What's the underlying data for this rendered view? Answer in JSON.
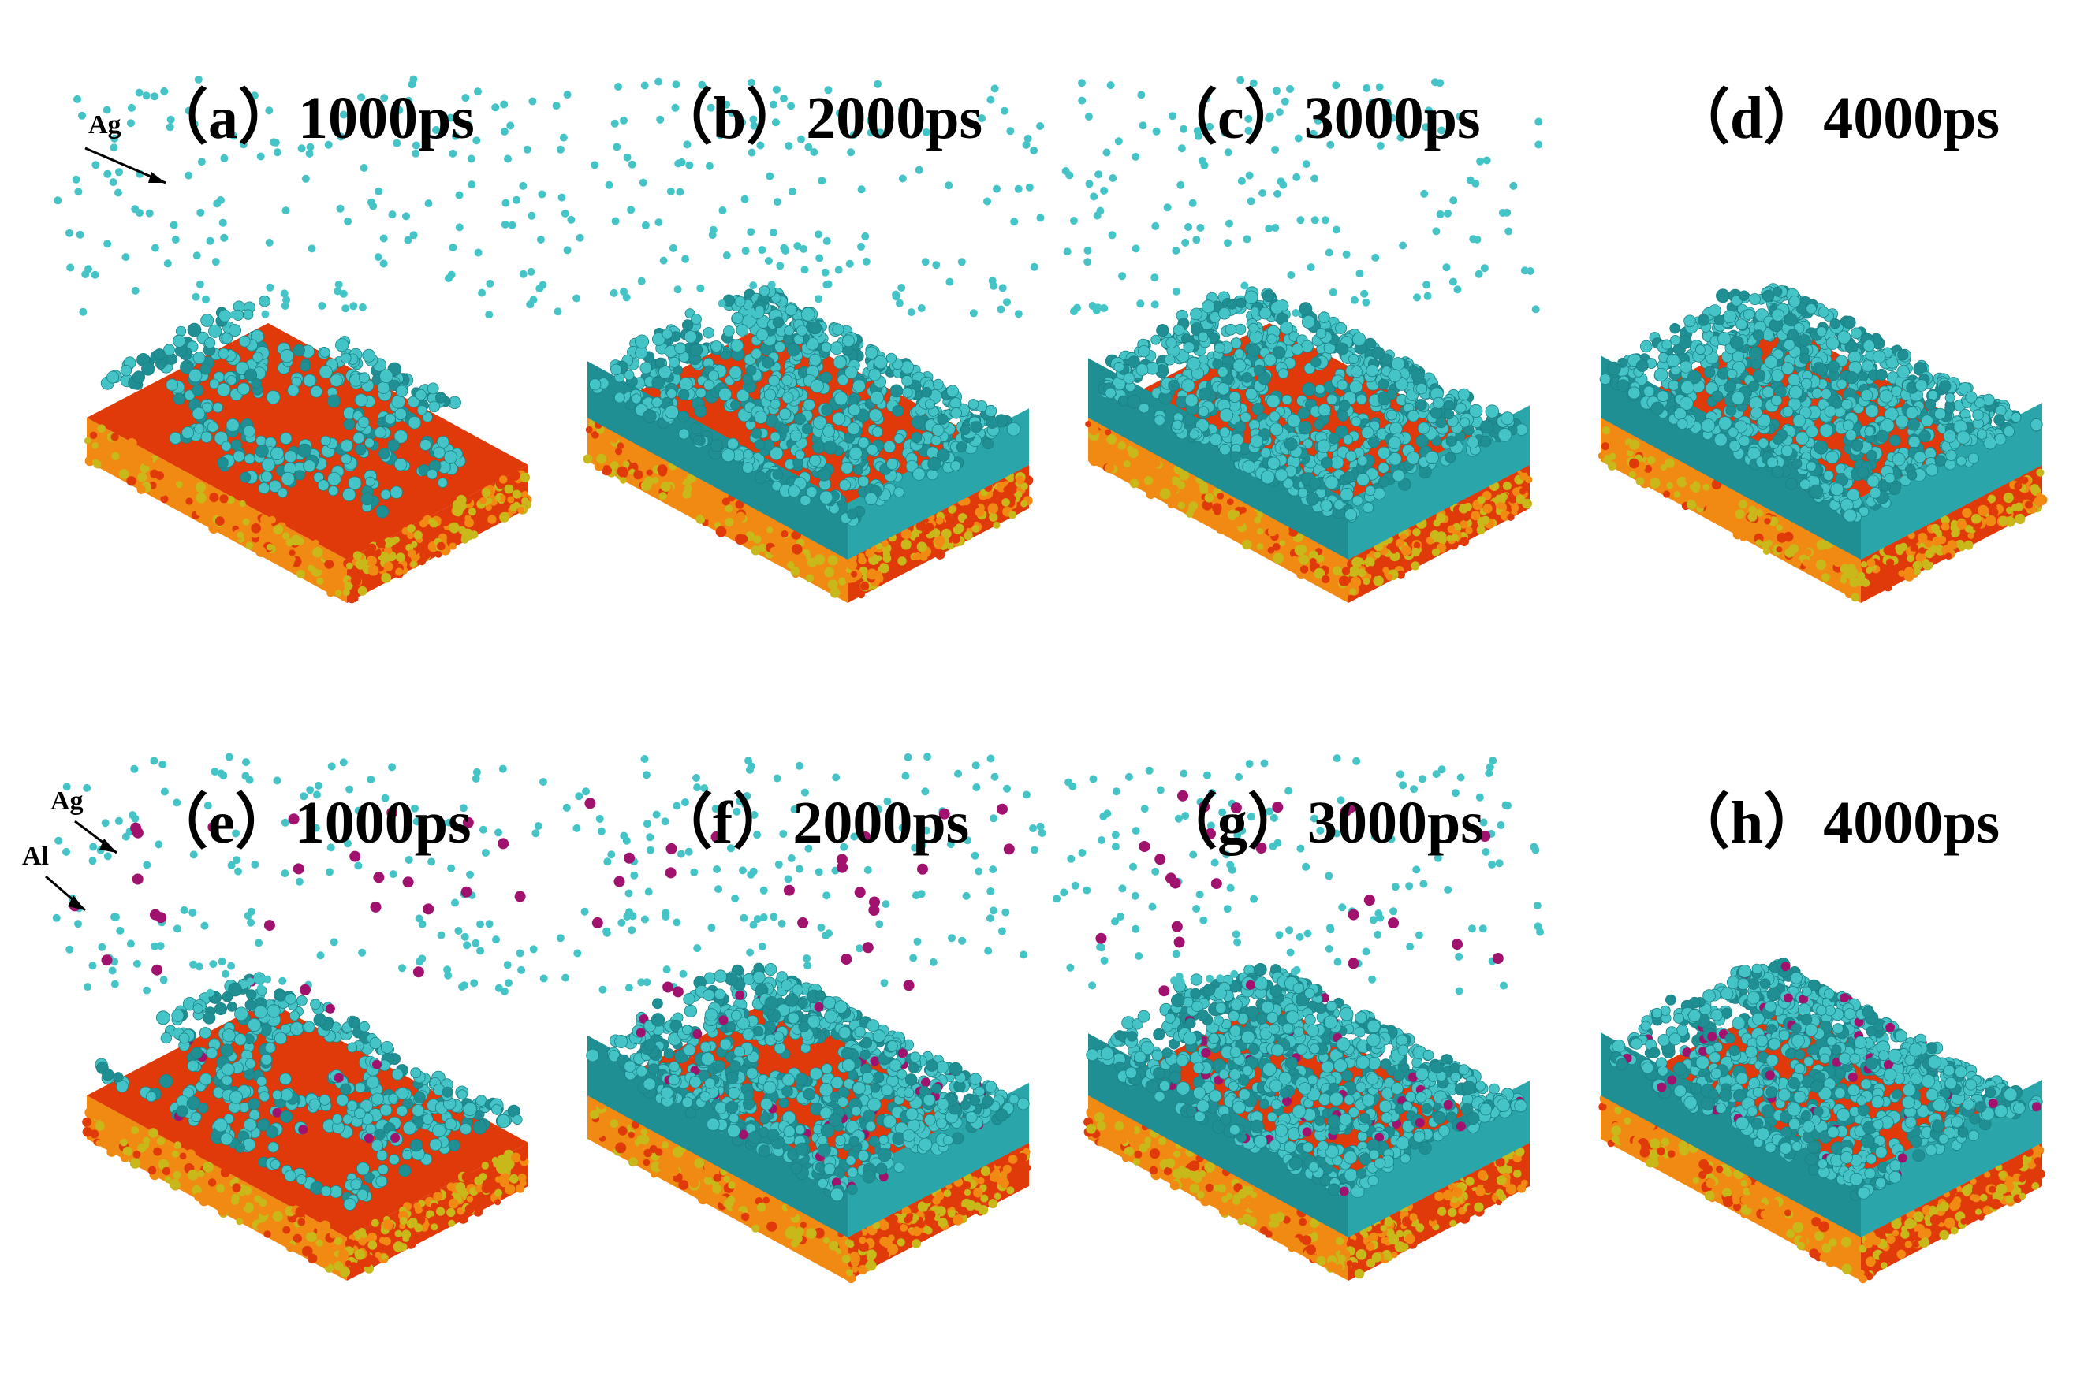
{
  "panels": [
    {
      "label": "（a）",
      "time": "1000ps",
      "coverage": 0.55,
      "aluminum": false,
      "top_ag_dense": true
    },
    {
      "label": "（b）",
      "time": "2000ps",
      "coverage": 0.85,
      "aluminum": false,
      "top_ag_dense": true
    },
    {
      "label": "（c）",
      "time": "3000ps",
      "coverage": 0.92,
      "aluminum": false,
      "top_ag_dense": true
    },
    {
      "label": "（d）",
      "time": "4000ps",
      "coverage": 0.98,
      "aluminum": false,
      "top_ag_dense": false
    },
    {
      "label": "（e）",
      "time": "1000ps",
      "coverage": 0.6,
      "aluminum": true,
      "top_ag_dense": true
    },
    {
      "label": "（f）",
      "time": "2000ps",
      "coverage": 0.93,
      "aluminum": true,
      "top_ag_dense": true
    },
    {
      "label": "（g）",
      "time": "3000ps",
      "coverage": 0.98,
      "aluminum": true,
      "top_ag_dense": true
    },
    {
      "label": "（h）",
      "time": "4000ps",
      "coverage": 1.0,
      "aluminum": true,
      "top_ag_dense": false
    }
  ],
  "labels": {
    "ag_top": "Ag",
    "ag_bottom": "Ag",
    "al_bottom": "Al"
  },
  "colors": {
    "ag": "#45c4c8",
    "ag_dark": "#1f8f93",
    "al": "#a0126e",
    "substrate_red": "#e03a0a",
    "substrate_orange": "#f08a12",
    "substrate_yellow": "#c8b81a"
  }
}
